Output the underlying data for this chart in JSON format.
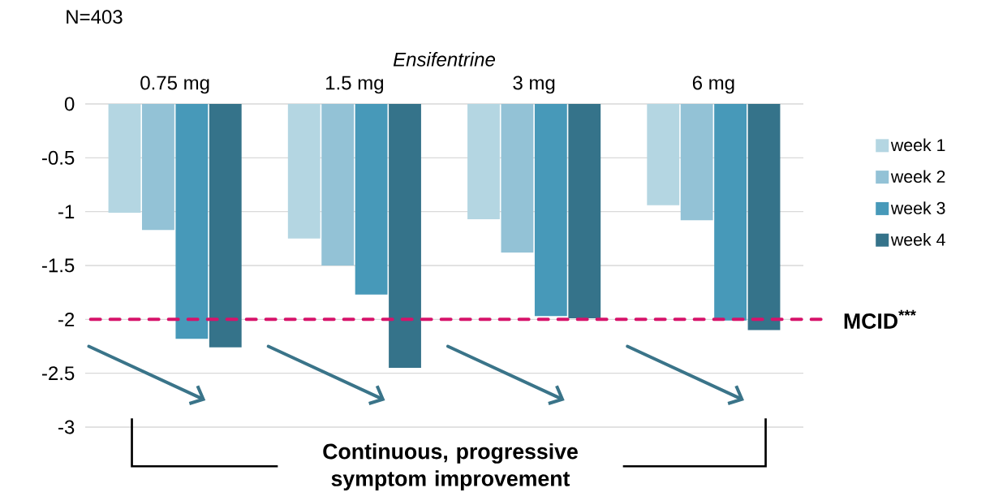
{
  "chart_data": {
    "type": "bar",
    "xlabel": "Ensifentrine",
    "categories": [
      "0.75 mg",
      "1.5 mg",
      "3 mg",
      "6 mg"
    ],
    "series": [
      {
        "name": "week 1",
        "color": "#b4d6e2",
        "values": [
          -1.01,
          -1.25,
          -1.07,
          -0.94
        ]
      },
      {
        "name": "week 2",
        "color": "#93c2d6",
        "values": [
          -1.17,
          -1.5,
          -1.38,
          -1.08
        ]
      },
      {
        "name": "week 3",
        "color": "#4799b9",
        "values": [
          -2.18,
          -1.77,
          -1.97,
          -2.01
        ]
      },
      {
        "name": "week 4",
        "color": "#35738a",
        "values": [
          -2.26,
          -2.45,
          -1.99,
          -2.1
        ]
      }
    ],
    "ylim": [
      -3,
      0
    ],
    "yticks": [
      -3,
      -2.5,
      -2,
      -1.5,
      -1,
      -0.5,
      0
    ],
    "grid": "y",
    "legend": "right",
    "ref_lines": [
      {
        "axis": "y",
        "value": -2,
        "label": "MCID$^{***}$",
        "color": "#d6136a",
        "line_style": "dashed"
      }
    ],
    "annotations": [
      "N=403",
      "Continuous, progressive symptom improvement"
    ]
  }
}
